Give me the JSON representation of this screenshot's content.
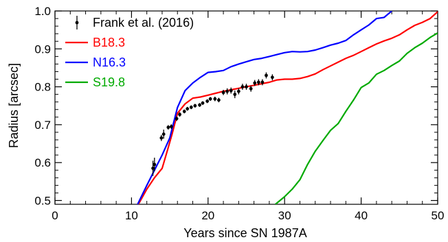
{
  "chart_data": {
    "type": "line",
    "xlabel": "Years since SN 1987A",
    "ylabel": "Radius [arcsec]",
    "xlim": [
      0,
      50
    ],
    "ylim": [
      0.49,
      1.0
    ],
    "x_ticks": [
      "0",
      "10",
      "20",
      "30",
      "40",
      "50"
    ],
    "y_ticks": [
      "0.5",
      "0.6",
      "0.7",
      "0.8",
      "0.9",
      "1.0"
    ],
    "legend_placement": "top-left",
    "grid": false,
    "observations": {
      "name": "Frank et al. (2016)",
      "color": "#000000",
      "points": [
        {
          "x": 12.8,
          "y": 0.585,
          "err": 0.02
        },
        {
          "x": 13.0,
          "y": 0.595,
          "err": 0.018
        },
        {
          "x": 13.9,
          "y": 0.665,
          "err": 0.008
        },
        {
          "x": 14.2,
          "y": 0.675,
          "err": 0.012
        },
        {
          "x": 14.8,
          "y": 0.693,
          "err": 0.006
        },
        {
          "x": 15.2,
          "y": 0.695,
          "err": 0.006
        },
        {
          "x": 15.9,
          "y": 0.716,
          "err": 0.006
        },
        {
          "x": 16.3,
          "y": 0.727,
          "err": 0.006
        },
        {
          "x": 16.9,
          "y": 0.735,
          "err": 0.005
        },
        {
          "x": 17.3,
          "y": 0.742,
          "err": 0.005
        },
        {
          "x": 17.8,
          "y": 0.746,
          "err": 0.005
        },
        {
          "x": 18.3,
          "y": 0.75,
          "err": 0.005
        },
        {
          "x": 18.9,
          "y": 0.752,
          "err": 0.005
        },
        {
          "x": 19.3,
          "y": 0.757,
          "err": 0.005
        },
        {
          "x": 19.9,
          "y": 0.762,
          "err": 0.005
        },
        {
          "x": 20.3,
          "y": 0.768,
          "err": 0.005
        },
        {
          "x": 20.9,
          "y": 0.768,
          "err": 0.006
        },
        {
          "x": 21.4,
          "y": 0.765,
          "err": 0.006
        },
        {
          "x": 22.0,
          "y": 0.785,
          "err": 0.007
        },
        {
          "x": 22.5,
          "y": 0.788,
          "err": 0.008
        },
        {
          "x": 23.0,
          "y": 0.79,
          "err": 0.008
        },
        {
          "x": 23.5,
          "y": 0.78,
          "err": 0.01
        },
        {
          "x": 24.0,
          "y": 0.788,
          "err": 0.008
        },
        {
          "x": 24.5,
          "y": 0.8,
          "err": 0.008
        },
        {
          "x": 25.0,
          "y": 0.8,
          "err": 0.008
        },
        {
          "x": 25.6,
          "y": 0.795,
          "err": 0.008
        },
        {
          "x": 26.1,
          "y": 0.81,
          "err": 0.008
        },
        {
          "x": 26.6,
          "y": 0.812,
          "err": 0.008
        },
        {
          "x": 27.1,
          "y": 0.812,
          "err": 0.008
        },
        {
          "x": 27.6,
          "y": 0.83,
          "err": 0.008
        },
        {
          "x": 28.4,
          "y": 0.825,
          "err": 0.008
        }
      ]
    },
    "series": [
      {
        "name": "B18.3",
        "color": "#ff0000",
        "x": [
          10.9,
          12.0,
          13.0,
          14.0,
          14.8,
          15.3,
          16.0,
          17.0,
          18.0,
          19.0,
          20.0,
          21.0,
          22.0,
          23.0,
          24.0,
          25.0,
          26.0,
          27.0,
          28.0,
          29.0,
          30.0,
          31.0,
          32.0,
          33.0,
          34.0,
          35.0,
          36.0,
          37.0,
          38.0,
          39.0,
          40.0,
          41.0,
          42.0,
          43.0,
          44.0,
          45.0,
          46.0,
          47.0,
          48.0,
          49.0,
          50.0
        ],
        "y": [
          0.49,
          0.53,
          0.56,
          0.585,
          0.64,
          0.675,
          0.73,
          0.755,
          0.77,
          0.773,
          0.778,
          0.783,
          0.788,
          0.792,
          0.796,
          0.8,
          0.804,
          0.808,
          0.812,
          0.818,
          0.82,
          0.82,
          0.822,
          0.827,
          0.834,
          0.845,
          0.855,
          0.865,
          0.875,
          0.883,
          0.893,
          0.903,
          0.913,
          0.921,
          0.928,
          0.937,
          0.95,
          0.962,
          0.97,
          0.98,
          0.998
        ]
      },
      {
        "name": "N16.3",
        "color": "#0000ff",
        "x": [
          10.8,
          12.0,
          13.0,
          14.0,
          15.0,
          16.0,
          17.0,
          18.0,
          19.0,
          20.0,
          21.0,
          22.0,
          23.0,
          24.0,
          25.0,
          26.0,
          27.0,
          28.0,
          29.0,
          30.0,
          31.0,
          32.0,
          33.0,
          34.0,
          35.0,
          36.0,
          37.0,
          38.0,
          39.0,
          40.0,
          41.0,
          42.0,
          43.0,
          44.0
        ],
        "y": [
          0.49,
          0.54,
          0.58,
          0.62,
          0.665,
          0.745,
          0.79,
          0.81,
          0.825,
          0.838,
          0.84,
          0.843,
          0.853,
          0.86,
          0.866,
          0.872,
          0.875,
          0.88,
          0.885,
          0.89,
          0.893,
          0.892,
          0.893,
          0.897,
          0.903,
          0.91,
          0.915,
          0.922,
          0.937,
          0.95,
          0.963,
          0.98,
          0.983,
          1.0
        ]
      },
      {
        "name": "S19.8",
        "color": "#00aa00",
        "x": [
          28.8,
          30.0,
          31.0,
          32.0,
          33.0,
          34.0,
          35.0,
          36.0,
          37.0,
          38.0,
          39.0,
          40.0,
          41.0,
          42.0,
          43.0,
          44.0,
          45.0,
          46.0,
          47.0,
          48.0,
          49.0,
          50.0
        ],
        "y": [
          0.49,
          0.51,
          0.53,
          0.555,
          0.595,
          0.63,
          0.658,
          0.685,
          0.703,
          0.735,
          0.765,
          0.798,
          0.81,
          0.833,
          0.843,
          0.856,
          0.868,
          0.888,
          0.903,
          0.915,
          0.93,
          0.942
        ]
      }
    ]
  }
}
